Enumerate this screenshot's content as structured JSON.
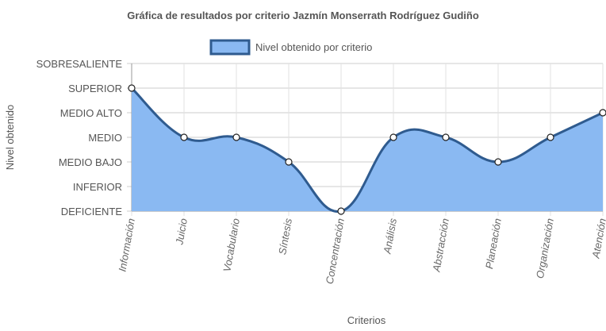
{
  "chart_data": {
    "type": "area",
    "title": "Gráfica de resultados por criterio Jazmín Monserrath Rodríguez Gudiño",
    "xlabel": "Criterios",
    "ylabel": "Nivel obtenido",
    "categories": [
      "Información",
      "Juicio",
      "Vocabulario",
      "Síntesis",
      "Concentración",
      "Análisis",
      "Abstracción",
      "Planeación",
      "Organización",
      "Atención"
    ],
    "y_levels": [
      "DEFICIENTE",
      "INFERIOR",
      "MEDIO BAJO",
      "MEDIO",
      "MEDIO ALTO",
      "SUPERIOR",
      "SOBRESALIENTE"
    ],
    "ylim": [
      0,
      6
    ],
    "series": [
      {
        "name": "Nivel obtenido por criterio",
        "values": [
          5,
          3,
          3,
          2,
          0,
          3,
          3,
          2,
          3,
          4
        ]
      }
    ],
    "legend": "top",
    "grid": true,
    "colors": {
      "line": "#2f5b8f",
      "fill": "#8ab9f2",
      "grid": "#cccccc"
    }
  }
}
